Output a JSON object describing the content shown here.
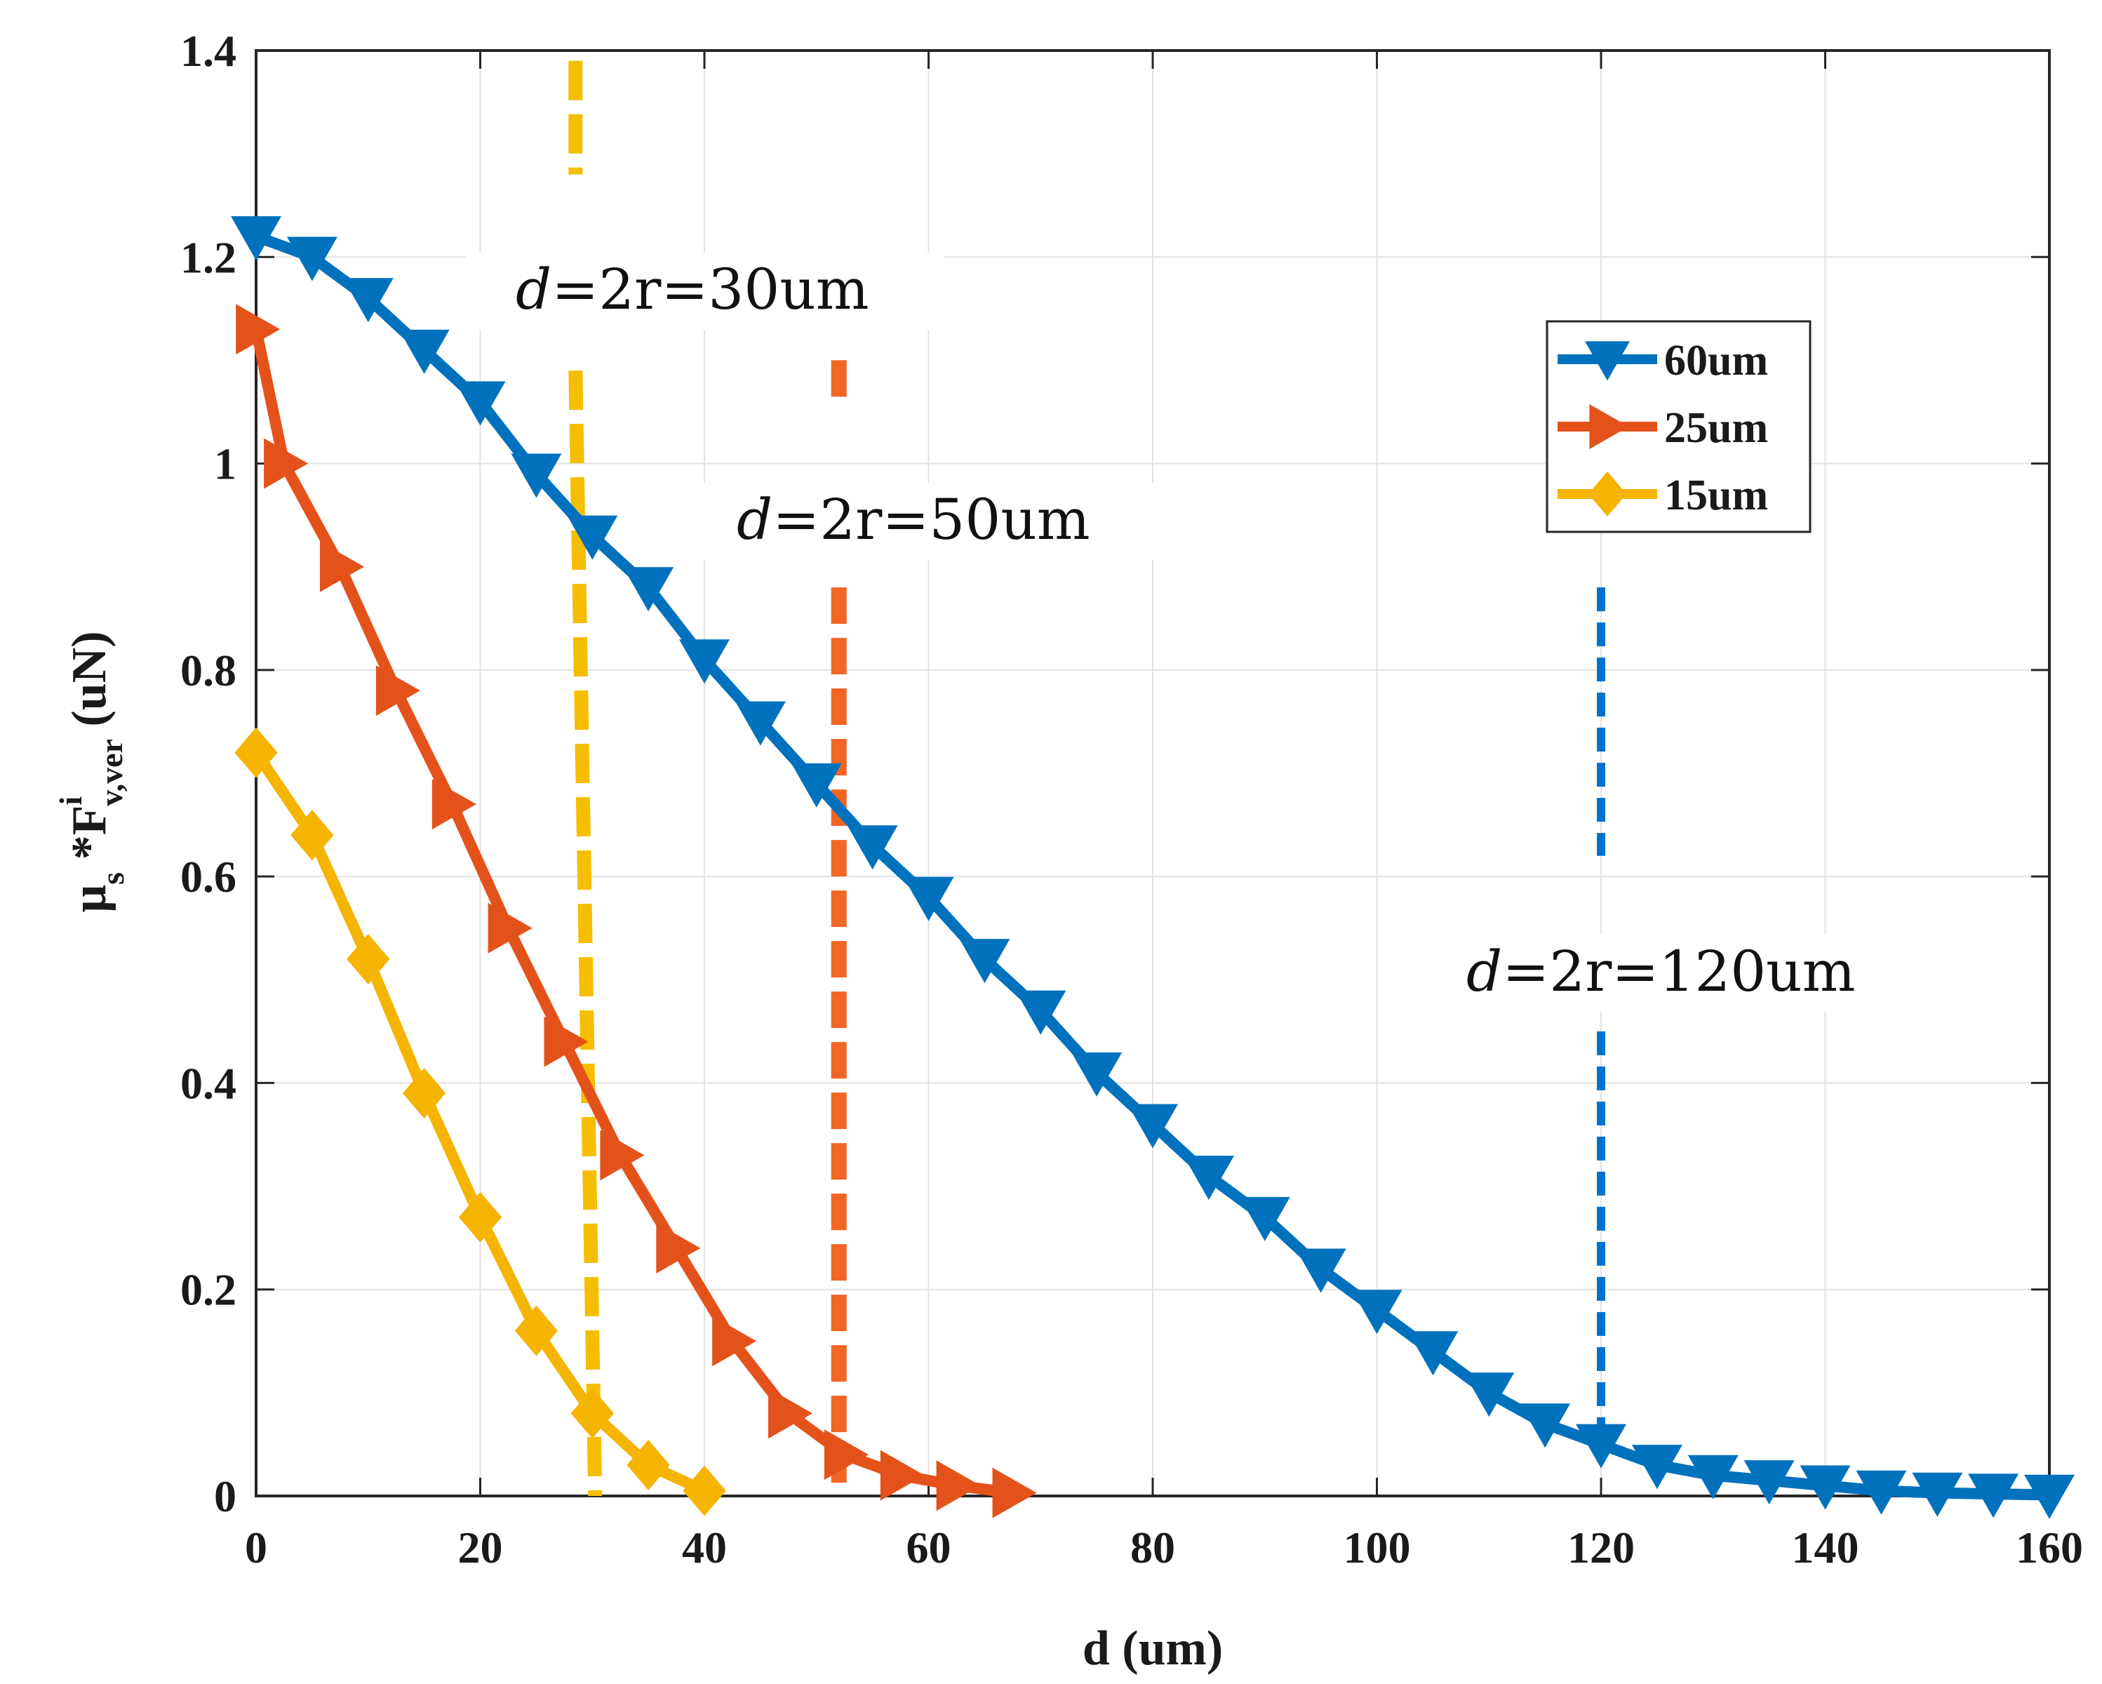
{
  "chart_data": {
    "type": "line",
    "title": "",
    "xlabel": "d (um)",
    "ylabel": {
      "mu": "μ",
      "mu_sub": "s",
      "star": " *F",
      "sup": "i",
      "sub": "v,ver",
      "unit": " (uN)"
    },
    "xlim": [
      0,
      160
    ],
    "ylim": [
      0,
      1.4
    ],
    "x_ticks": [
      "0",
      "20",
      "40",
      "60",
      "80",
      "100",
      "120",
      "140",
      "160"
    ],
    "y_ticks": [
      "0",
      "0.2",
      "0.4",
      "0.6",
      "0.8",
      "1",
      "1.2",
      "1.4"
    ],
    "grid": true,
    "legend_position": "top-right",
    "series": [
      {
        "name": "60um",
        "color": "#0072BD",
        "marker": "triangle-down",
        "x": [
          0,
          5,
          10,
          15,
          20,
          25,
          30,
          35,
          40,
          45,
          50,
          55,
          60,
          65,
          70,
          75,
          80,
          85,
          90,
          95,
          100,
          105,
          110,
          115,
          120,
          125,
          130,
          135,
          140,
          145,
          150,
          155,
          160
        ],
        "y": [
          1.22,
          1.2,
          1.16,
          1.11,
          1.06,
          0.99,
          0.93,
          0.88,
          0.81,
          0.75,
          0.69,
          0.63,
          0.58,
          0.52,
          0.47,
          0.41,
          0.36,
          0.31,
          0.27,
          0.22,
          0.18,
          0.14,
          0.1,
          0.07,
          0.05,
          0.03,
          0.02,
          0.015,
          0.01,
          0.005,
          0.003,
          0.002,
          0.001
        ]
      },
      {
        "name": "25um",
        "color": "#E4521B",
        "marker": "triangle-right",
        "x": [
          0,
          2.5,
          7.5,
          12.5,
          17.5,
          22.5,
          27.5,
          32.5,
          37.5,
          42.5,
          47.5,
          52.5,
          57.5,
          62.5,
          67.5
        ],
        "y": [
          1.13,
          1.0,
          0.9,
          0.78,
          0.67,
          0.55,
          0.44,
          0.33,
          0.24,
          0.15,
          0.08,
          0.04,
          0.02,
          0.01,
          0.003
        ]
      },
      {
        "name": "15um",
        "color": "#F5B400",
        "marker": "diamond",
        "x": [
          0,
          5,
          10,
          15,
          20,
          25,
          30,
          35,
          40
        ],
        "y": [
          0.72,
          0.64,
          0.52,
          0.39,
          0.27,
          0.16,
          0.08,
          0.03,
          0.005
        ]
      }
    ],
    "vlines": [
      {
        "x": 28.5,
        "color": "#F5BE00",
        "style": "long-dash"
      },
      {
        "x": 52,
        "color": "#F26522",
        "style": "long-dash"
      },
      {
        "x": 120,
        "color": "#0072CE",
        "style": "short-dash"
      }
    ],
    "annotations": [
      {
        "italic": "d",
        "text": "=2r=30um"
      },
      {
        "italic": "d",
        "text": "=2r=50um"
      },
      {
        "italic": "d",
        "text": "=2r=120um"
      }
    ]
  }
}
